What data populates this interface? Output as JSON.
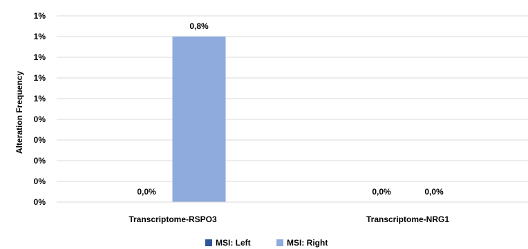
{
  "chart_data": {
    "type": "bar",
    "ylabel": "Alteration Frequency",
    "ylim": [
      0,
      0.9
    ],
    "y_tick_labels": [
      "0%",
      "0%",
      "0%",
      "0%",
      "0%",
      "1%",
      "1%",
      "1%",
      "1%",
      "1%"
    ],
    "categories": [
      "Transcriptome-RSPO3",
      "Transcriptome-NRG1"
    ],
    "series": [
      {
        "name": "MSI: Left",
        "color": "#2f5597",
        "values": [
          0.0,
          0.0
        ],
        "labels": [
          "0,0%",
          "0,0%"
        ]
      },
      {
        "name": "MSI: Right",
        "color": "#8faadc",
        "values": [
          0.8,
          0.0
        ],
        "labels": [
          "0,8%",
          "0,0%"
        ]
      }
    ],
    "legend_position": "bottom",
    "grid": true,
    "gridline_color": "#d9d9d9"
  }
}
